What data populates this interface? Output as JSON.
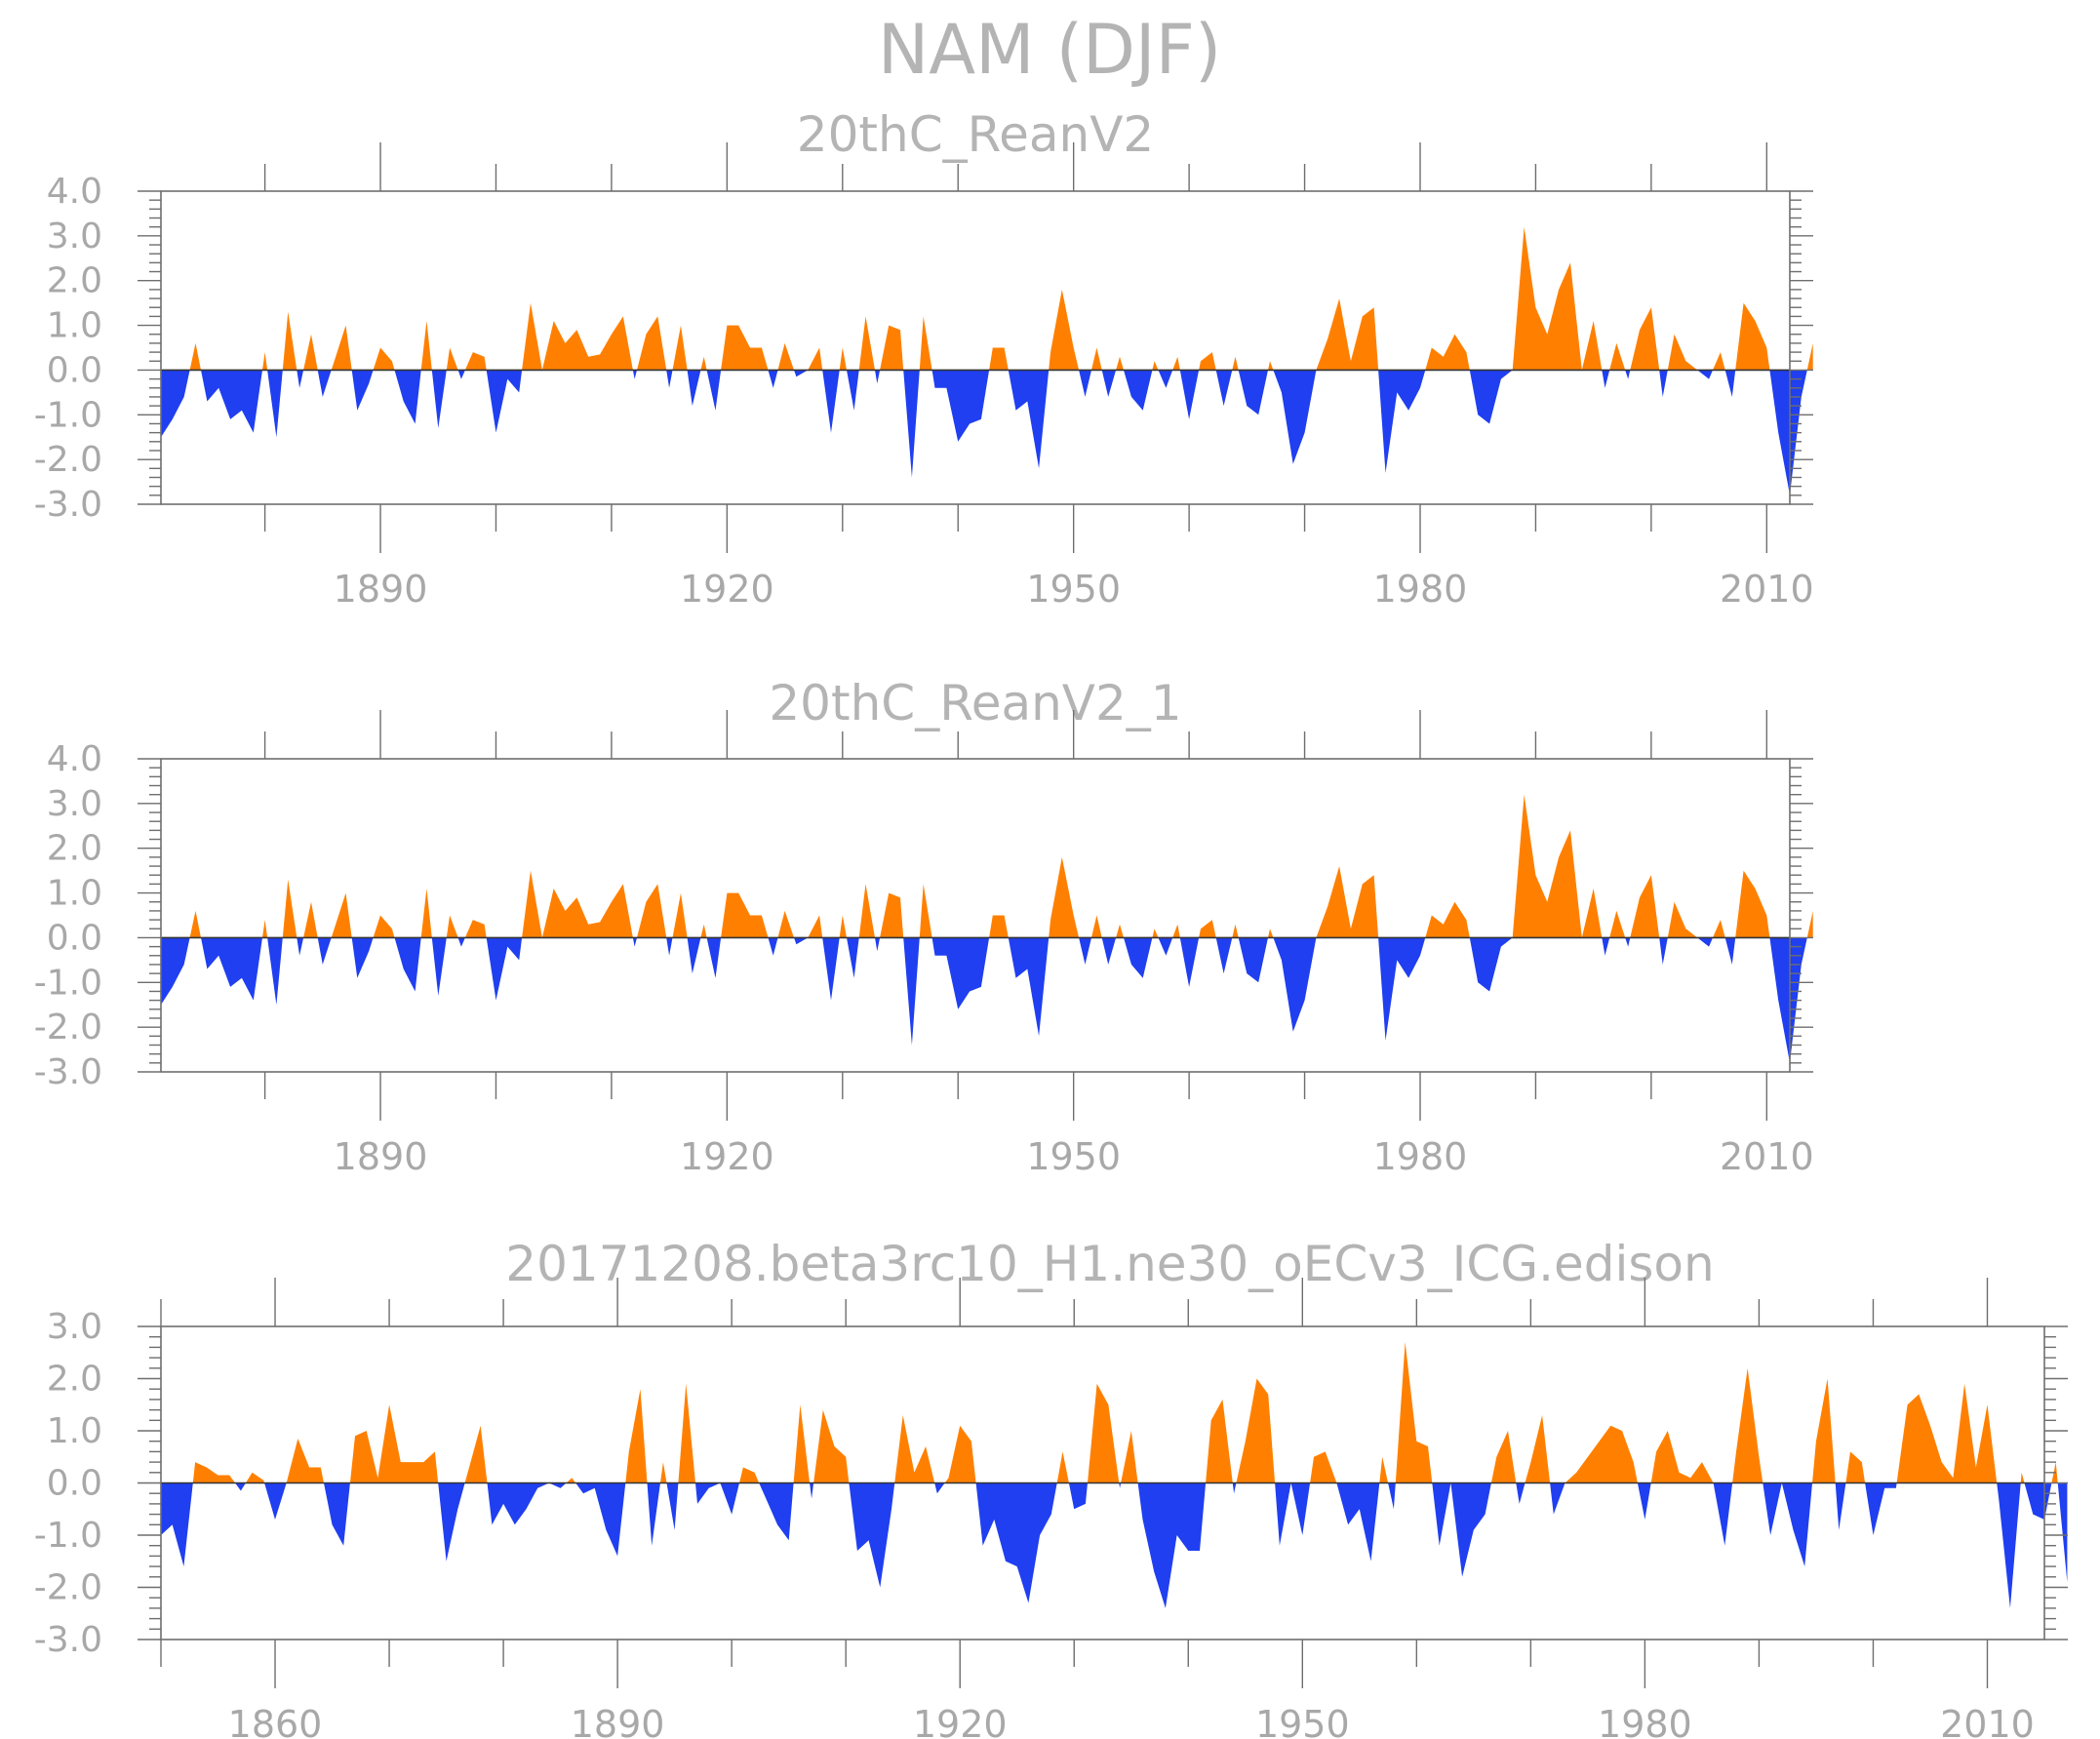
{
  "title": "NAM (DJF)",
  "colors": {
    "positive": "#ff8000",
    "negative": "#1f3ff0",
    "text": "#b4b4b4",
    "axis": "#6e6e6e"
  },
  "chart_data": [
    {
      "type": "area",
      "title": "20thC_ReanV2",
      "xlim": [
        1871,
        2012
      ],
      "ylim": [
        -3.0,
        4.0
      ],
      "yticks": [
        "4.0",
        "3.0",
        "2.0",
        "1.0",
        "0.0",
        "-1.0",
        "-2.0",
        "-3.0"
      ],
      "xticks": [
        "1890",
        "1920",
        "1950",
        "1980",
        "2010"
      ],
      "x_start": 1871,
      "values": [
        -1.5,
        -1.1,
        -0.6,
        0.6,
        -0.7,
        -0.4,
        -1.1,
        -0.9,
        -1.4,
        0.4,
        -1.5,
        1.3,
        -0.4,
        0.8,
        -0.6,
        0.2,
        1.0,
        -0.9,
        -0.3,
        0.5,
        0.2,
        -0.7,
        -1.2,
        1.1,
        -1.3,
        0.5,
        -0.2,
        0.4,
        0.3,
        -1.4,
        -0.2,
        -0.5,
        1.5,
        0.0,
        1.1,
        0.6,
        0.9,
        0.3,
        0.35,
        0.8,
        1.2,
        -0.2,
        0.8,
        1.2,
        -0.4,
        1.0,
        -0.8,
        0.3,
        -0.9,
        1.0,
        1.0,
        0.5,
        0.5,
        -0.4,
        0.6,
        -0.15,
        0.0,
        0.5,
        -1.4,
        0.5,
        -0.9,
        1.2,
        -0.3,
        1.0,
        0.9,
        -2.4,
        1.2,
        -0.4,
        -0.4,
        -1.6,
        -1.2,
        -1.1,
        0.5,
        0.5,
        -0.9,
        -0.7,
        -2.2,
        0.4,
        1.8,
        0.5,
        -0.6,
        0.5,
        -0.6,
        0.3,
        -0.6,
        -0.9,
        0.2,
        -0.4,
        0.3,
        -1.1,
        0.2,
        0.4,
        -0.8,
        0.3,
        -0.8,
        -1.0,
        0.2,
        -0.5,
        -2.1,
        -1.4,
        0.0,
        0.7,
        1.6,
        0.2,
        1.2,
        1.4,
        -2.3,
        -0.5,
        -0.9,
        -0.4,
        0.5,
        0.3,
        0.8,
        0.4,
        -1.0,
        -1.2,
        -0.2,
        0.0,
        3.2,
        1.4,
        0.8,
        1.8,
        2.4,
        0.0,
        1.1,
        -0.4,
        0.6,
        -0.2,
        0.9,
        1.4,
        -0.6,
        0.8,
        0.2,
        0.0,
        -0.2,
        0.4,
        -0.6,
        1.5,
        1.1,
        0.5,
        -1.4,
        -2.8,
        -0.6,
        0.6
      ]
    },
    {
      "type": "area",
      "title": "20thC_ReanV2_1",
      "xlim": [
        1871,
        2012
      ],
      "ylim": [
        -3.0,
        4.0
      ],
      "yticks": [
        "4.0",
        "3.0",
        "2.0",
        "1.0",
        "0.0",
        "-1.0",
        "-2.0",
        "-3.0"
      ],
      "xticks": [
        "1890",
        "1920",
        "1950",
        "1980",
        "2010"
      ],
      "x_start": 1871,
      "values": [
        -1.5,
        -1.1,
        -0.6,
        0.6,
        -0.7,
        -0.4,
        -1.1,
        -0.9,
        -1.4,
        0.4,
        -1.5,
        1.3,
        -0.4,
        0.8,
        -0.6,
        0.2,
        1.0,
        -0.9,
        -0.3,
        0.5,
        0.2,
        -0.7,
        -1.2,
        1.1,
        -1.3,
        0.5,
        -0.2,
        0.4,
        0.3,
        -1.4,
        -0.2,
        -0.5,
        1.5,
        0.0,
        1.1,
        0.6,
        0.9,
        0.3,
        0.35,
        0.8,
        1.2,
        -0.2,
        0.8,
        1.2,
        -0.4,
        1.0,
        -0.8,
        0.3,
        -0.9,
        1.0,
        1.0,
        0.5,
        0.5,
        -0.4,
        0.6,
        -0.15,
        0.0,
        0.5,
        -1.4,
        0.5,
        -0.9,
        1.2,
        -0.3,
        1.0,
        0.9,
        -2.4,
        1.2,
        -0.4,
        -0.4,
        -1.6,
        -1.2,
        -1.1,
        0.5,
        0.5,
        -0.9,
        -0.7,
        -2.2,
        0.4,
        1.8,
        0.5,
        -0.6,
        0.5,
        -0.6,
        0.3,
        -0.6,
        -0.9,
        0.2,
        -0.4,
        0.3,
        -1.1,
        0.2,
        0.4,
        -0.8,
        0.3,
        -0.8,
        -1.0,
        0.2,
        -0.5,
        -2.1,
        -1.4,
        0.0,
        0.7,
        1.6,
        0.2,
        1.2,
        1.4,
        -2.3,
        -0.5,
        -0.9,
        -0.4,
        0.5,
        0.3,
        0.8,
        0.4,
        -1.0,
        -1.2,
        -0.2,
        0.0,
        3.2,
        1.4,
        0.8,
        1.8,
        2.4,
        0.0,
        1.1,
        -0.4,
        0.6,
        -0.2,
        0.9,
        1.4,
        -0.6,
        0.8,
        0.2,
        0.0,
        -0.2,
        0.4,
        -0.6,
        1.5,
        1.1,
        0.5,
        -1.4,
        -2.8,
        -0.6,
        0.6
      ]
    },
    {
      "type": "area",
      "title": "20171208.beta3rc10_H1.ne30_oECv3_ICG.edison",
      "xlim": [
        1850,
        2015
      ],
      "ylim": [
        -3.0,
        3.0
      ],
      "yticks": [
        "3.0",
        "2.0",
        "1.0",
        "0.0",
        "-1.0",
        "-2.0",
        "-3.0"
      ],
      "xticks": [
        "1860",
        "1890",
        "1920",
        "1950",
        "1980",
        "2010"
      ],
      "x_start": 1850,
      "values": [
        -1.0,
        -0.8,
        -1.6,
        0.4,
        0.3,
        0.15,
        0.15,
        -0.15,
        0.2,
        0.05,
        -0.7,
        0.0,
        0.85,
        0.3,
        0.3,
        -0.8,
        -1.2,
        0.9,
        1.0,
        0.1,
        1.5,
        0.4,
        0.4,
        0.4,
        0.6,
        -1.5,
        -0.5,
        0.3,
        1.1,
        -0.8,
        -0.4,
        -0.8,
        -0.5,
        -0.1,
        0.0,
        -0.1,
        0.1,
        -0.2,
        -0.1,
        -0.9,
        -1.4,
        0.6,
        1.8,
        -1.2,
        0.4,
        -0.9,
        1.9,
        -0.4,
        -0.1,
        0.0,
        -0.6,
        0.3,
        0.2,
        -0.3,
        -0.8,
        -1.1,
        1.5,
        -0.3,
        1.4,
        0.7,
        0.5,
        -1.3,
        -1.1,
        -2.0,
        -0.5,
        1.3,
        0.2,
        0.7,
        -0.2,
        0.1,
        1.1,
        0.8,
        -1.2,
        -0.7,
        -1.5,
        -1.6,
        -2.3,
        -1.0,
        -0.6,
        0.6,
        -0.5,
        -0.4,
        1.9,
        1.5,
        -0.1,
        1.0,
        -0.7,
        -1.7,
        -2.4,
        -1.0,
        -1.3,
        -1.3,
        1.2,
        1.6,
        -0.2,
        0.8,
        2.0,
        1.7,
        -1.2,
        0.0,
        -1.0,
        0.5,
        0.6,
        0.0,
        -0.8,
        -0.5,
        -1.5,
        0.5,
        -0.5,
        2.7,
        0.8,
        0.7,
        -1.2,
        0.0,
        -1.8,
        -0.9,
        -0.6,
        0.5,
        1.0,
        -0.4,
        0.4,
        1.3,
        -0.6,
        0.0,
        0.2,
        0.5,
        0.8,
        1.1,
        1.0,
        0.4,
        -0.7,
        0.6,
        1.0,
        0.2,
        0.1,
        0.4,
        0.0,
        -1.2,
        0.6,
        2.2,
        0.5,
        -1.0,
        0.0,
        -0.9,
        -1.6,
        0.8,
        2.0,
        -0.9,
        0.6,
        0.4,
        -1.0,
        -0.1,
        -0.1,
        1.5,
        1.7,
        1.1,
        0.4,
        0.1,
        1.9,
        0.3,
        1.5,
        -0.3,
        -2.4,
        0.2,
        -0.6,
        -0.7,
        0.4,
        -1.9
      ]
    }
  ]
}
